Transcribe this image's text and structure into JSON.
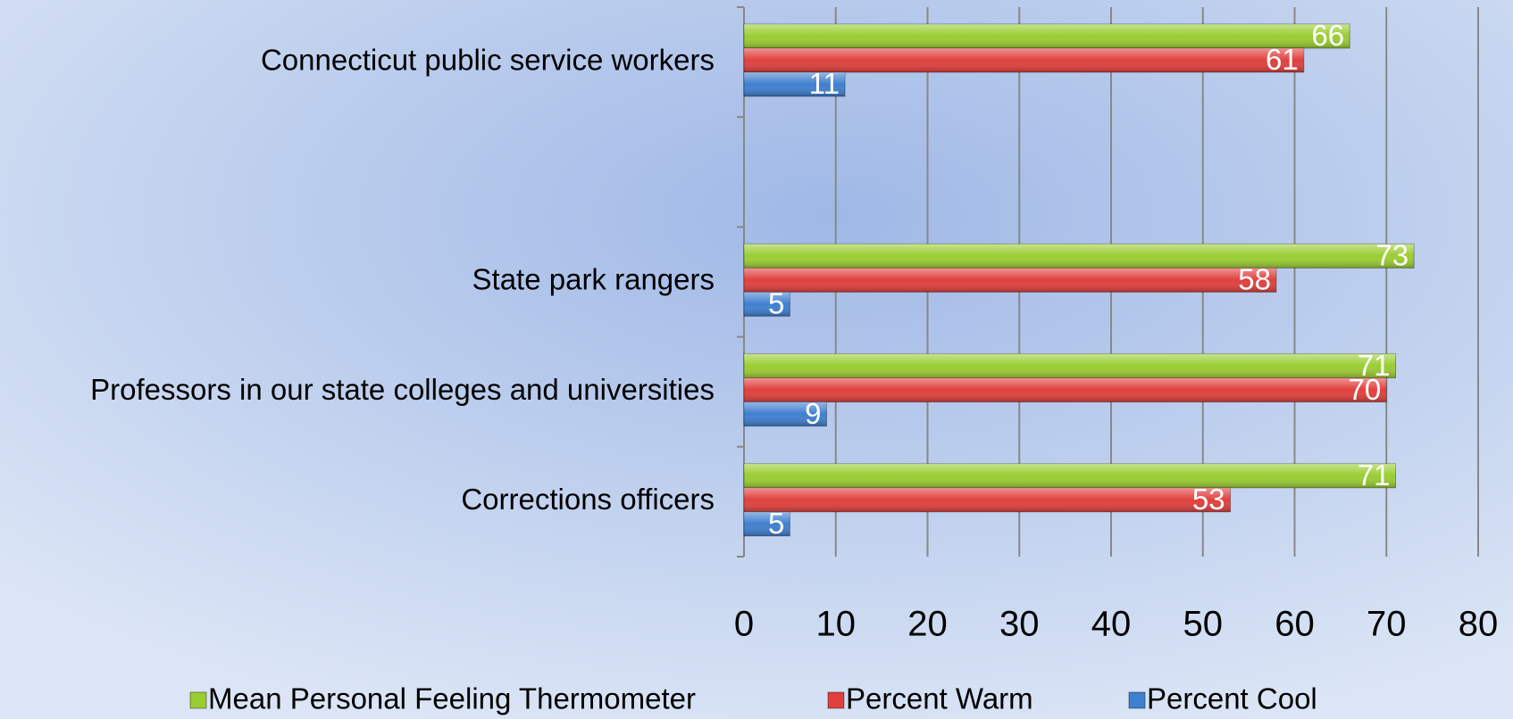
{
  "chart_data": {
    "type": "bar",
    "orientation": "horizontal",
    "categories": [
      "Connecticut public service workers",
      null,
      "State park rangers",
      "Professors in our state colleges and universities",
      "Corrections officers"
    ],
    "series": [
      {
        "name": "Mean Personal Feeling Thermometer",
        "color": "#9acd32",
        "values": [
          66,
          null,
          73,
          71,
          71
        ]
      },
      {
        "name": "Percent Warm",
        "color": "#e0403d",
        "values": [
          61,
          null,
          58,
          70,
          53
        ]
      },
      {
        "name": "Percent Cool",
        "color": "#3f7fcf",
        "values": [
          11,
          null,
          5,
          9,
          5
        ]
      }
    ],
    "xlim": [
      0,
      80
    ],
    "xticks": [
      0,
      10,
      20,
      30,
      40,
      50,
      60,
      70,
      80
    ],
    "grid": true,
    "legend": "bottom"
  }
}
